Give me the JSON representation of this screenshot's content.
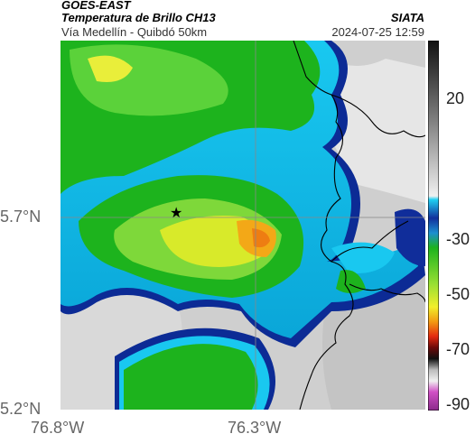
{
  "header": {
    "satellite": "GOES-EAST",
    "product": "Temperatura de Brillo CH13",
    "region": "Vía Medellín - Quibdó 50km",
    "organization": "SIATA",
    "datetime": "2024-07-25 12:59"
  },
  "map": {
    "lat_labels": [
      "5.7°N",
      "5.2°N"
    ],
    "lon_labels": [
      "76.8°W",
      "76.3°W"
    ],
    "marker": "★"
  },
  "colorbar": {
    "tick_labels": [
      "20",
      "-30",
      "-50",
      "-70",
      "-90"
    ],
    "range": [
      -95,
      35
    ]
  },
  "colors": {
    "green": "#1db31d",
    "yellow": "#f2ef2a",
    "orange": "#f39a12",
    "cyan": "#19c8f0",
    "navy": "#102d9a",
    "gray": "#d0d0d0"
  }
}
